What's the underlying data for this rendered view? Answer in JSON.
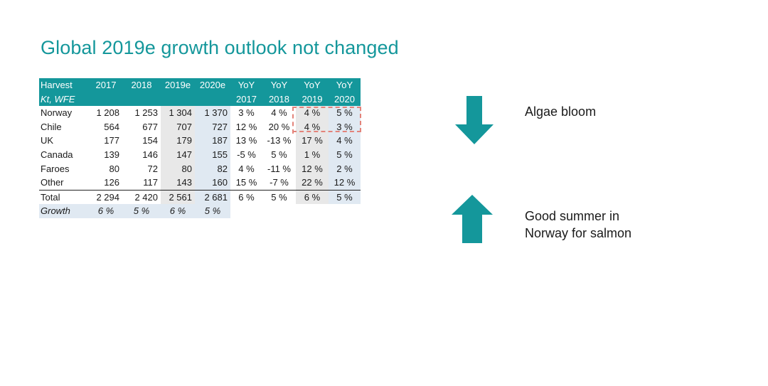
{
  "title": "Global 2019e growth outlook not changed",
  "table": {
    "header_row1": [
      "Harvest",
      "2017",
      "2018",
      "2019e",
      "2020e",
      "YoY",
      "YoY",
      "YoY",
      "YoY"
    ],
    "header_row2": [
      "Kt, WFE",
      "",
      "",
      "",
      "",
      "2017",
      "2018",
      "2019",
      "2020"
    ],
    "rows": [
      [
        "Norway",
        "1 208",
        "1 253",
        "1 304",
        "1 370",
        "3 %",
        "4 %",
        "4 %",
        "5 %"
      ],
      [
        "Chile",
        "564",
        "677",
        "707",
        "727",
        "12 %",
        "20 %",
        "4 %",
        "3 %"
      ],
      [
        "UK",
        "177",
        "154",
        "179",
        "187",
        "13 %",
        "-13 %",
        "17 %",
        "4 %"
      ],
      [
        "Canada",
        "139",
        "146",
        "147",
        "155",
        "-5 %",
        "5 %",
        "1 %",
        "5 %"
      ],
      [
        "Faroes",
        "80",
        "72",
        "80",
        "82",
        "4 %",
        "-11 %",
        "12 %",
        "2 %"
      ],
      [
        "Other",
        "126",
        "117",
        "143",
        "160",
        "15 %",
        "-7 %",
        "22 %",
        "12 %"
      ]
    ],
    "total": [
      "Total",
      "2 294",
      "2 420",
      "2 561",
      "2 681",
      "6 %",
      "5 %",
      "6 %",
      "5 %"
    ],
    "growth": [
      "Growth",
      "6 %",
      "5 %",
      "6 %",
      "5 %"
    ]
  },
  "annotations": {
    "down_note": "Algae bloom",
    "up_note_line1": "Good summer in",
    "up_note_line2": "Norway for salmon"
  },
  "colors": {
    "accent": "#14979b",
    "highlight_dash": "#e3837a"
  },
  "icons": {
    "down": "arrow-down-icon",
    "up": "arrow-up-icon"
  }
}
